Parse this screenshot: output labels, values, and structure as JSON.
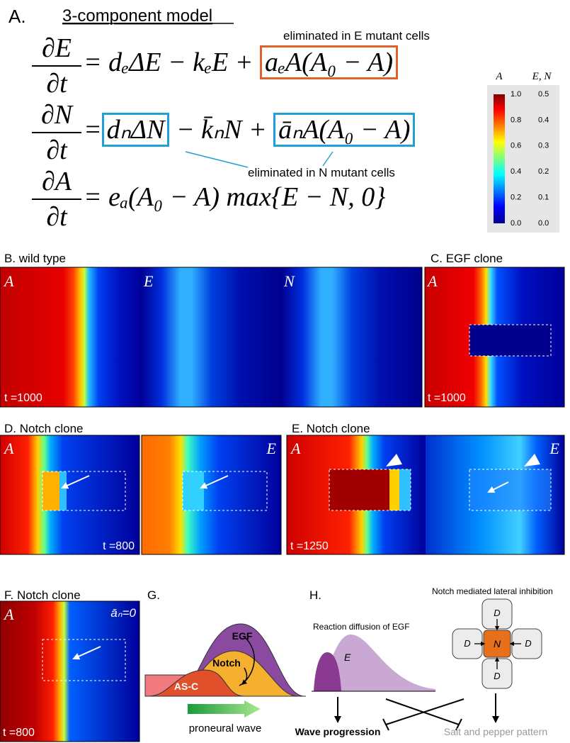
{
  "panel_a": {
    "label": "A.",
    "title": "3-component model",
    "equations": [
      {
        "num": "∂E",
        "den": "∂t",
        "parts": [
          {
            "text": "= dₑΔE − kₑE +"
          },
          {
            "text": "aₑA(A₀ − A)",
            "box": "#e0622a"
          }
        ]
      },
      {
        "num": "∂N",
        "den": "∂t",
        "parts": [
          {
            "text": "="
          },
          {
            "text": "dₙΔN",
            "box": "#20a0d8"
          },
          {
            "text": "− k̄ₙN +"
          },
          {
            "text": "āₙA(A₀ − A)",
            "box": "#20a0d8"
          }
        ]
      },
      {
        "num": "∂A",
        "den": "∂t",
        "parts": [
          {
            "text": "= eₐ(A₀ − A) max{E − N, 0}"
          }
        ]
      }
    ],
    "note_e": "eliminated in E mutant cells",
    "note_n": "eliminated in N mutant cells"
  },
  "colorbar": {
    "header_left": "A",
    "header_right": "E, N",
    "left_ticks": [
      "1.0",
      "0.8",
      "0.6",
      "0.4",
      "0.2",
      "0.0"
    ],
    "right_ticks": [
      "0.5",
      "0.4",
      "0.3",
      "0.2",
      "0.1",
      "0.0"
    ]
  },
  "panel_b": {
    "title": "B.  wild type",
    "maps": [
      "A",
      "E",
      "N"
    ],
    "time": "t =1000"
  },
  "panel_c": {
    "title": "C.  EGF clone",
    "maps": [
      "A"
    ],
    "time": "t =1000"
  },
  "panel_d": {
    "title": "D.  Notch clone",
    "maps": [
      "A",
      "E"
    ],
    "time": "t =800"
  },
  "panel_e": {
    "title": "E.  Notch clone",
    "maps": [
      "A",
      "E"
    ],
    "time": "t =1250"
  },
  "panel_f": {
    "title": "F.  Notch clone",
    "maps": [
      "A"
    ],
    "parameter": "āₙ=0",
    "time": "t =800"
  },
  "panel_g": {
    "label": "G.",
    "curves": [
      "EGF",
      "Notch",
      "AS-C"
    ],
    "arrow_label": "proneural wave"
  },
  "panel_h": {
    "label": "H.",
    "left_title": "Reaction diffusion of EGF",
    "profile_label": "E",
    "right_title": "Notch mediated lateral inhibition",
    "ligand": "D",
    "receptor": "N",
    "outcomes": [
      "Wave progression",
      "Salt and pepper pattern"
    ]
  }
}
